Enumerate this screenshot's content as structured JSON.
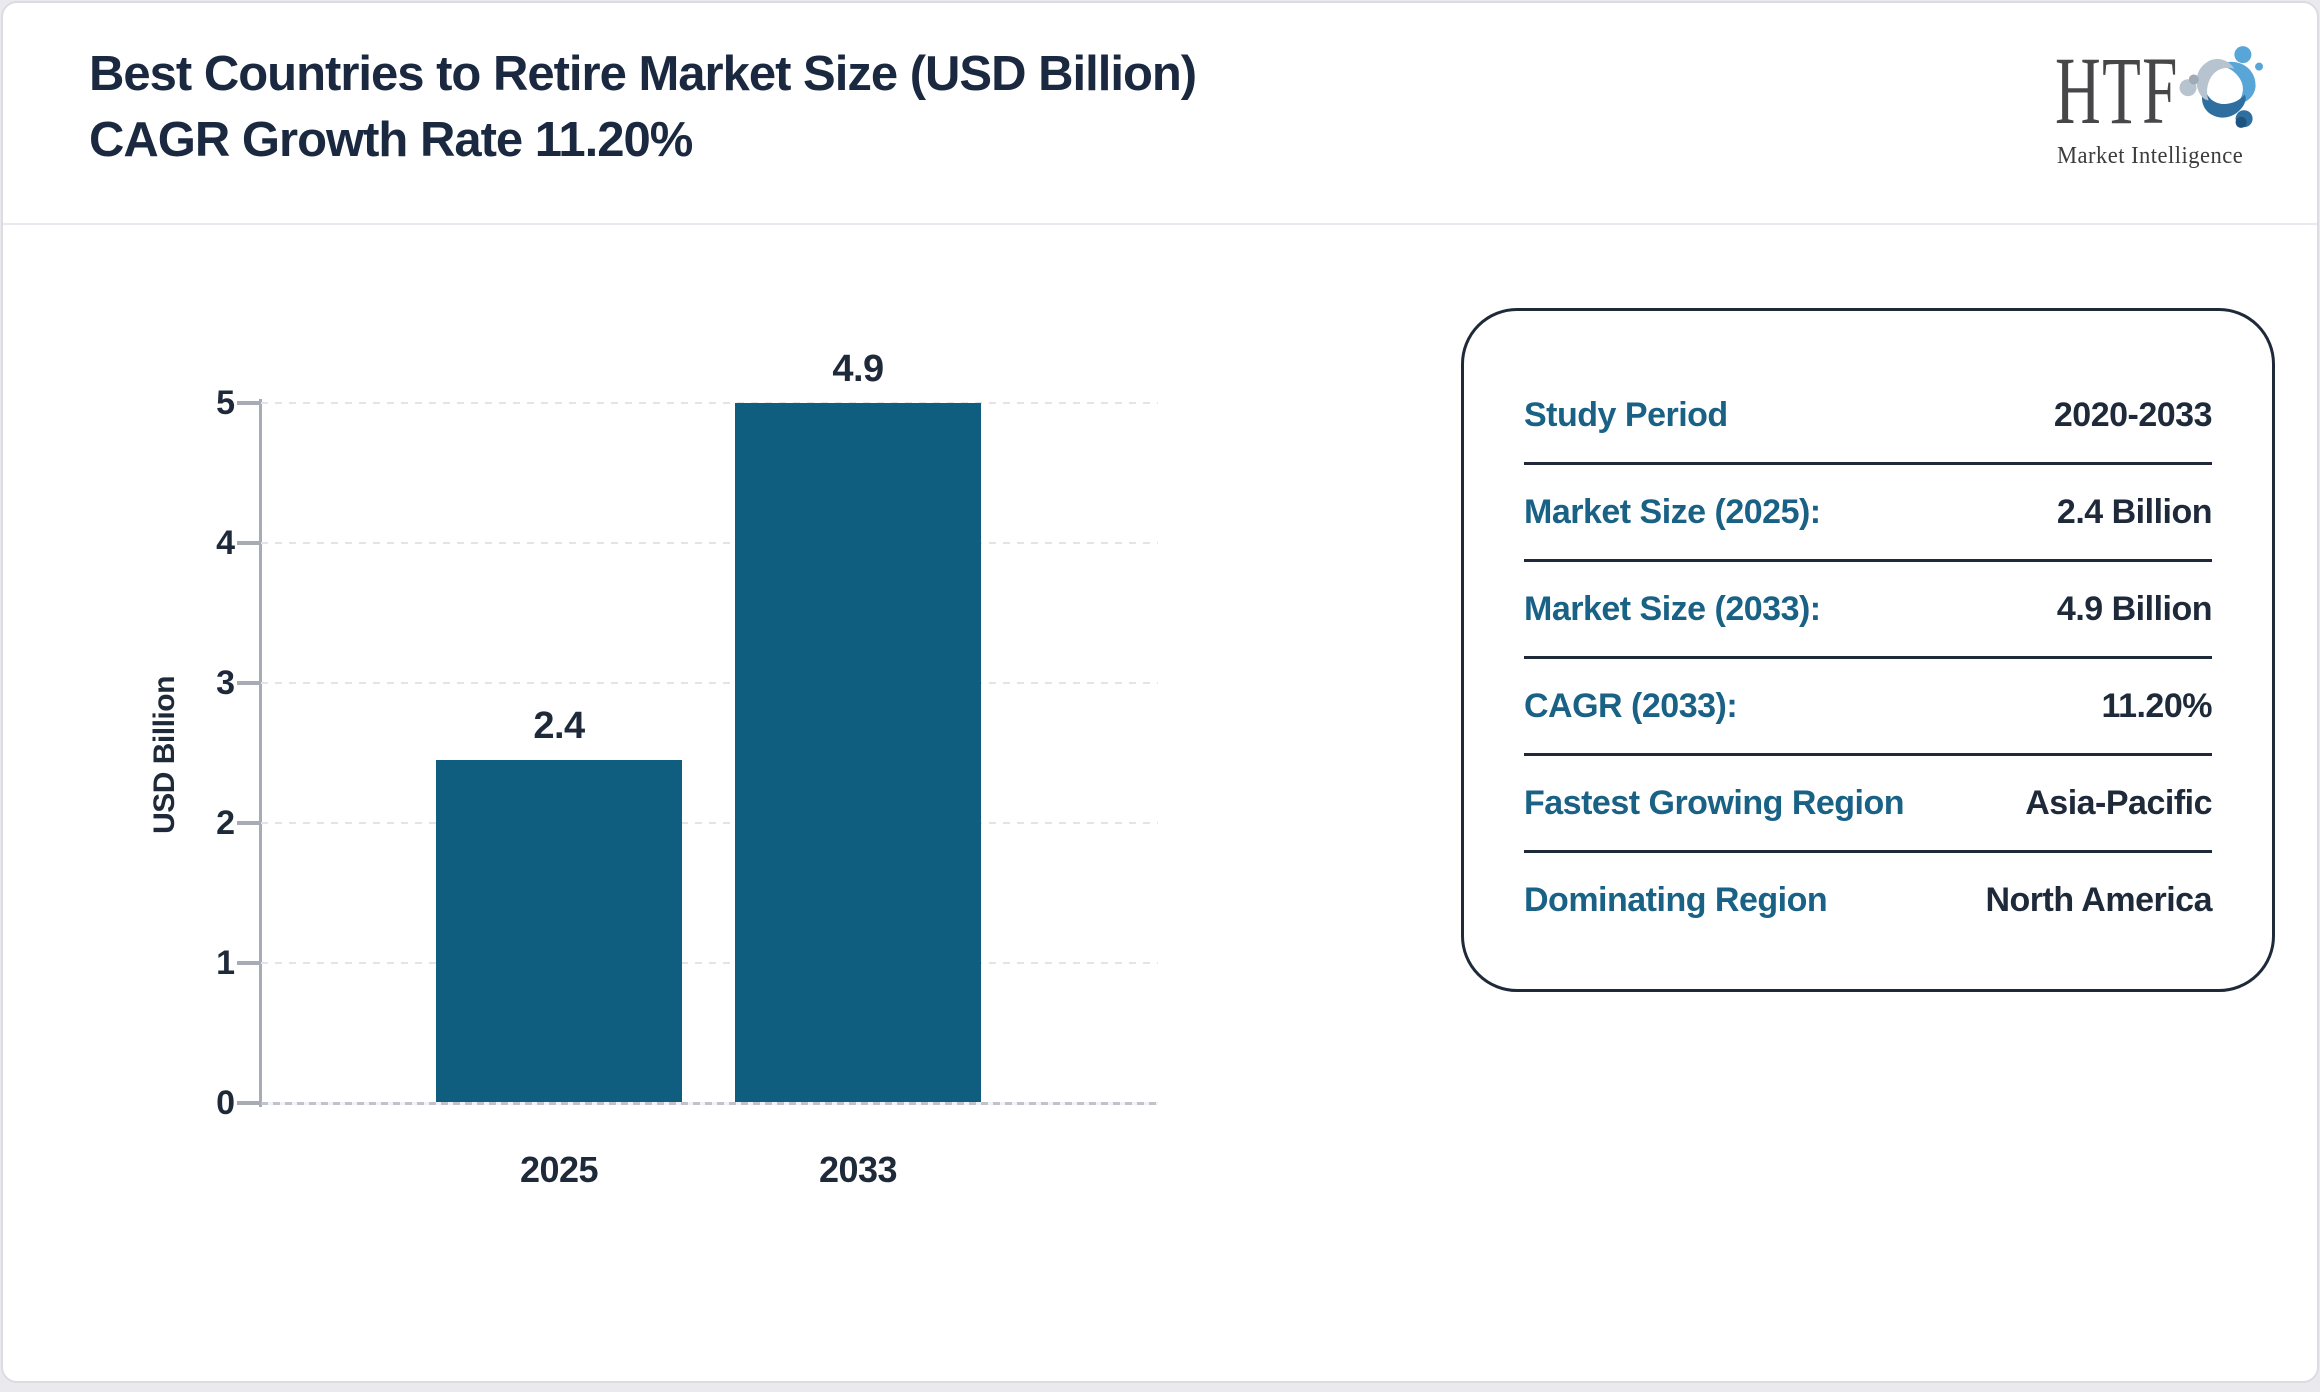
{
  "header": {
    "title": "Best Countries to Retire Market Size (USD Billion) CAGR Growth Rate 11.20%"
  },
  "logo": {
    "text": "HTF",
    "subtext": "Market Intelligence",
    "icon": "three-figures-swirl-icon",
    "icon_colors": {
      "figure_top": "#58a6d8",
      "figure_right": "#2e6fa0",
      "figure_left": "#b7c3ce",
      "dot_top": "#58a6d8",
      "dot_bottom": "#1e5380",
      "dot_left": "#9fachb8"
    }
  },
  "chart_data": {
    "type": "bar",
    "categories": [
      "2025",
      "2033"
    ],
    "values": [
      2.4,
      4.9
    ],
    "value_labels": [
      "2.4",
      "4.9"
    ],
    "title": "",
    "xlabel": "",
    "ylabel": "USD Billion",
    "ylim": [
      0,
      5
    ],
    "yticks": [
      0,
      1,
      2,
      3,
      4,
      5
    ],
    "grid": "horizontal-dashed",
    "legend": "none",
    "bar_color": "#0f5e7f",
    "label_color": "#1e2a3a"
  },
  "panel": {
    "rows": [
      {
        "label": "Study Period",
        "value": "2020-2033"
      },
      {
        "label": "Market Size (2025):",
        "value": "2.4 Billion"
      },
      {
        "label": "Market Size (2033):",
        "value": "4.9 Billion"
      },
      {
        "label": "CAGR (2033):",
        "value": "11.20%"
      },
      {
        "label": "Fastest Growing Region",
        "value": "Asia-Pacific"
      },
      {
        "label": "Dominating Region",
        "value": "North America"
      }
    ]
  },
  "colors": {
    "title_navy": "#1b2940",
    "text_navy": "#1e2a3a",
    "label_teal": "#1a6285",
    "bar_teal": "#0f5e7f",
    "axis_gray": "#a6abb5",
    "grid_gray": "#e3e3e8",
    "header_divider": "#e8e8ee"
  }
}
